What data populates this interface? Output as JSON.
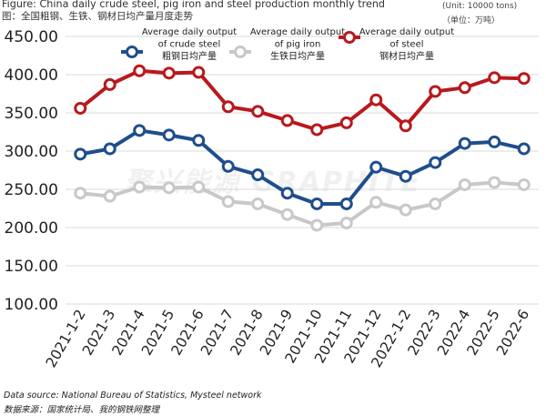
{
  "header": {
    "title": "Figure: China daily crude steel, pig iron and steel production  monthly trend",
    "subtitle": "图：全国粗钢、生铁、钢材日均产量月度走势",
    "unit_en": "(Unit: 10000 tons)",
    "unit_zh": "（单位：万吨）"
  },
  "footer": {
    "source_en": "Data source: National Bureau of Statistics, Mysteel network",
    "source_zh": "数据来源：国家统计局、我的钢铁网整理"
  },
  "watermark": "聚兴能源 GRAPHITE",
  "colors": {
    "crude_steel": "#1f4e8c",
    "pig_iron": "#c8c8c8",
    "steel": "#b8191e",
    "grid": "#d9d9d9"
  },
  "chart_data": {
    "type": "line",
    "title": "",
    "xlabel": "",
    "ylabel": "",
    "ylim": [
      100,
      450
    ],
    "yticks": [
      "450.00",
      "400.00",
      "350.00",
      "300.00",
      "250.00",
      "200.00",
      "150.00",
      "100.00"
    ],
    "grid": true,
    "legend_position": "top",
    "categories": [
      "2021-1-2",
      "2021-3",
      "2021-4",
      "2021-5",
      "2021-6",
      "2021-7",
      "2021-8",
      "2021-9",
      "2021-10",
      "2021-11",
      "2021-12",
      "2022-1-2",
      "2022-3",
      "2022-4",
      "2022-5",
      "2022-6"
    ],
    "series": [
      {
        "key": "crude_steel",
        "name_en": "Average daily output of crude steel",
        "name_line1": "Average daily output",
        "name_line2": "of crude steel",
        "name_zh": "粗钢日均产量",
        "values": [
          296,
          303,
          327,
          321,
          314,
          280,
          269,
          245,
          231,
          231,
          279,
          267,
          285,
          310,
          312,
          303
        ]
      },
      {
        "key": "pig_iron",
        "name_en": "Average daily output of pig iron",
        "name_line1": "Average daily output",
        "name_line2": "of pig iron",
        "name_zh": "生铁日均产量",
        "values": [
          245,
          241,
          253,
          252,
          253,
          234,
          231,
          217,
          203,
          206,
          233,
          223,
          231,
          256,
          259,
          256
        ]
      },
      {
        "key": "steel",
        "name_en": "Average daily output of steel",
        "name_line1": "Average daily output",
        "name_line2": "of steel",
        "name_zh": "钢材日均产量",
        "values": [
          356,
          387,
          405,
          402,
          403,
          358,
          352,
          340,
          328,
          337,
          367,
          333,
          378,
          383,
          396,
          395
        ]
      }
    ]
  }
}
